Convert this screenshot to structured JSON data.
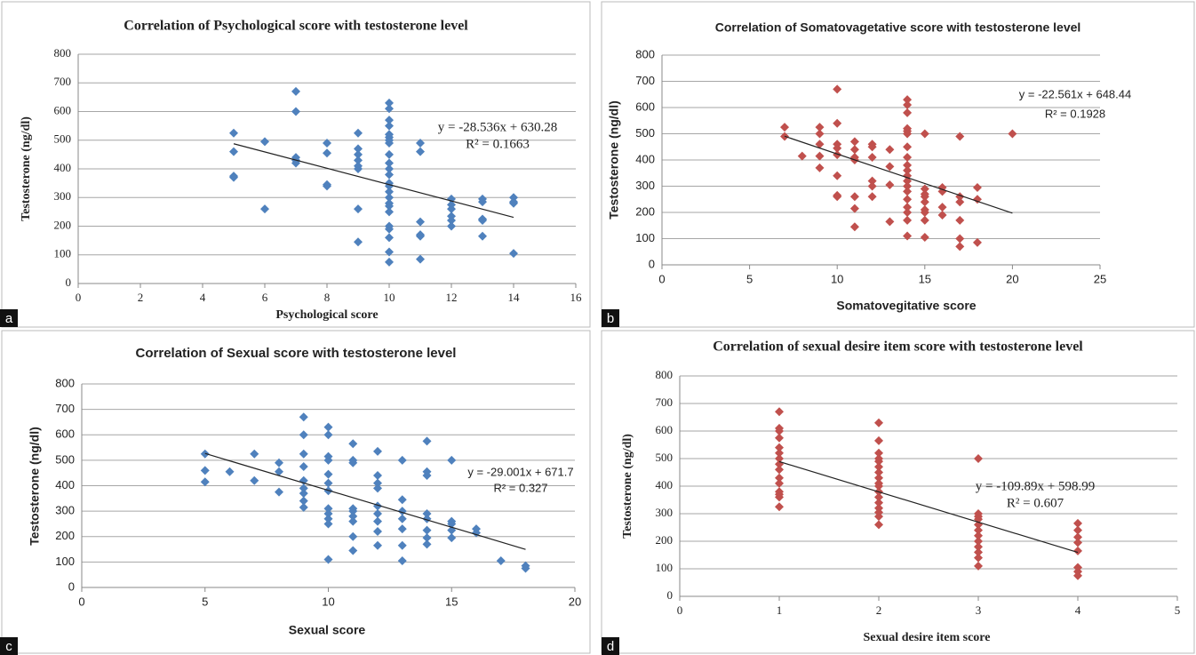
{
  "chart_data": [
    {
      "type": "scatter",
      "panel_label": "a",
      "title": "Correlation of Psychological score with testosterone level",
      "xlabel": "Psychological score",
      "ylabel": "Testosterone (ng/dl)",
      "xlim": [
        0,
        16
      ],
      "ylim": [
        0,
        800
      ],
      "xticks": [
        0,
        2,
        4,
        6,
        8,
        10,
        12,
        14,
        16
      ],
      "yticks": [
        0,
        100,
        200,
        300,
        400,
        500,
        600,
        700,
        800
      ],
      "grid": true,
      "color": "#4f81bd",
      "x": [
        5,
        5,
        5,
        5,
        6,
        6,
        7,
        7,
        7,
        7,
        7,
        8,
        8,
        8,
        8,
        9,
        9,
        9,
        9,
        9,
        9,
        9,
        9,
        10,
        10,
        10,
        10,
        10,
        10,
        10,
        10,
        10,
        10,
        10,
        10,
        10,
        10,
        10,
        10,
        10,
        10,
        10,
        10,
        10,
        10,
        10,
        10,
        11,
        11,
        11,
        11,
        11,
        11,
        12,
        12,
        12,
        12,
        12,
        12,
        13,
        13,
        13,
        13,
        13,
        14,
        14,
        14,
        14
      ],
      "y": [
        525,
        460,
        375,
        370,
        495,
        260,
        670,
        600,
        440,
        430,
        420,
        490,
        455,
        345,
        340,
        525,
        470,
        450,
        430,
        410,
        400,
        260,
        145,
        630,
        610,
        570,
        550,
        520,
        510,
        500,
        490,
        450,
        420,
        400,
        380,
        350,
        340,
        320,
        300,
        280,
        270,
        250,
        200,
        190,
        160,
        110,
        75,
        490,
        460,
        215,
        170,
        165,
        85,
        295,
        275,
        260,
        235,
        220,
        200,
        295,
        285,
        225,
        220,
        165,
        300,
        285,
        105,
        280
      ],
      "trendline": {
        "x": [
          5,
          14
        ],
        "y": [
          487.6,
          230.8
        ]
      },
      "annotations": [
        "y = -28.536x + 630.28",
        "R² = 0.1663"
      ]
    },
    {
      "type": "scatter",
      "panel_label": "b",
      "title": "Correlation of Somatovagetative score with testosterone level",
      "xlabel": "Somatovegitative score",
      "ylabel": "Testosterone (ng/dl)",
      "xlim": [
        0,
        25
      ],
      "ylim": [
        0,
        800
      ],
      "xticks": [
        0,
        5,
        10,
        15,
        20,
        25
      ],
      "yticks": [
        0,
        100,
        200,
        300,
        400,
        500,
        600,
        700,
        800
      ],
      "grid": true,
      "color": "#c0504d",
      "x": [
        7,
        7,
        8,
        9,
        9,
        9,
        9,
        9,
        10,
        10,
        10,
        10,
        10,
        10,
        10,
        10,
        11,
        11,
        11,
        11,
        11,
        11,
        11,
        12,
        12,
        12,
        12,
        12,
        12,
        13,
        13,
        13,
        13,
        14,
        14,
        14,
        14,
        14,
        14,
        14,
        14,
        14,
        14,
        14,
        14,
        14,
        14,
        14,
        14,
        14,
        14,
        14,
        15,
        15,
        15,
        15,
        15,
        15,
        15,
        15,
        15,
        16,
        16,
        16,
        16,
        17,
        17,
        17,
        17,
        17,
        17,
        18,
        18,
        18,
        20
      ],
      "y": [
        525,
        490,
        415,
        525,
        500,
        460,
        415,
        370,
        670,
        540,
        460,
        445,
        420,
        340,
        265,
        260,
        470,
        440,
        410,
        400,
        260,
        215,
        145,
        460,
        450,
        410,
        320,
        300,
        260,
        440,
        375,
        305,
        165,
        630,
        610,
        580,
        520,
        510,
        500,
        450,
        410,
        380,
        360,
        340,
        320,
        300,
        280,
        250,
        220,
        200,
        170,
        110,
        500,
        290,
        270,
        260,
        240,
        210,
        200,
        170,
        105,
        295,
        280,
        220,
        190,
        490,
        260,
        240,
        170,
        100,
        70,
        295,
        250,
        85,
        500
      ],
      "trendline": {
        "x": [
          7,
          20
        ],
        "y": [
          490.5,
          197.2
        ]
      },
      "annotations": [
        "y = -22.561x + 648.44",
        "R² = 0.1928"
      ]
    },
    {
      "type": "scatter",
      "panel_label": "c",
      "title": "Correlation of Sexual score with testosterone level",
      "xlabel": "Sexual score",
      "ylabel": "Testosterone (ng/dl)",
      "xlim": [
        0,
        20
      ],
      "ylim": [
        0,
        800
      ],
      "xticks": [
        0,
        5,
        10,
        15,
        20
      ],
      "yticks": [
        0,
        100,
        200,
        300,
        400,
        500,
        600,
        700,
        800
      ],
      "grid": true,
      "color": "#4f81bd",
      "x": [
        5,
        5,
        5,
        6,
        7,
        7,
        8,
        8,
        8,
        9,
        9,
        9,
        9,
        9,
        9,
        9,
        9,
        9,
        10,
        10,
        10,
        10,
        10,
        10,
        10,
        10,
        10,
        10,
        10,
        10,
        11,
        11,
        11,
        11,
        11,
        11,
        11,
        11,
        11,
        12,
        12,
        12,
        12,
        12,
        12,
        12,
        12,
        12,
        13,
        13,
        13,
        13,
        13,
        13,
        13,
        14,
        14,
        14,
        14,
        14,
        14,
        14,
        14,
        15,
        15,
        15,
        15,
        15,
        16,
        16,
        17,
        18,
        18
      ],
      "y": [
        525,
        460,
        415,
        455,
        525,
        420,
        490,
        455,
        375,
        670,
        600,
        525,
        475,
        420,
        390,
        370,
        340,
        315,
        630,
        600,
        515,
        500,
        445,
        410,
        380,
        310,
        290,
        270,
        250,
        110,
        565,
        500,
        490,
        310,
        300,
        280,
        260,
        200,
        145,
        535,
        440,
        410,
        390,
        320,
        290,
        260,
        220,
        165,
        500,
        345,
        300,
        270,
        230,
        165,
        105,
        575,
        455,
        440,
        290,
        270,
        225,
        195,
        170,
        500,
        260,
        250,
        225,
        195,
        230,
        215,
        105,
        85,
        75
      ],
      "trendline": {
        "x": [
          5,
          18
        ],
        "y": [
          526.7,
          149.7
        ]
      },
      "annotations": [
        "y = -29.001x + 671.7",
        "R² = 0.327"
      ]
    },
    {
      "type": "scatter",
      "panel_label": "d",
      "title": "Correlation of sexual desire item score with testosterone level",
      "xlabel": "Sexual desire item score",
      "ylabel": "Testosterone (ng/dl)",
      "xlim": [
        0,
        5
      ],
      "ylim": [
        0,
        800
      ],
      "xticks": [
        0,
        1,
        2,
        3,
        4,
        5
      ],
      "yticks": [
        0,
        100,
        200,
        300,
        400,
        500,
        600,
        700,
        800
      ],
      "grid": true,
      "color": "#c0504d",
      "x": [
        1,
        1,
        1,
        1,
        1,
        1,
        1,
        1,
        1,
        1,
        1,
        1,
        1,
        1,
        1,
        2,
        2,
        2,
        2,
        2,
        2,
        2,
        2,
        2,
        2,
        2,
        2,
        2,
        2,
        2,
        2,
        2,
        3,
        3,
        3,
        3,
        3,
        3,
        3,
        3,
        3,
        3,
        3,
        3,
        4,
        4,
        4,
        4,
        4,
        4,
        4,
        4
      ],
      "y": [
        670,
        610,
        600,
        575,
        540,
        520,
        500,
        480,
        460,
        430,
        410,
        380,
        370,
        360,
        325,
        630,
        565,
        520,
        500,
        490,
        470,
        450,
        430,
        410,
        400,
        380,
        360,
        340,
        320,
        305,
        290,
        260,
        500,
        300,
        290,
        280,
        260,
        240,
        220,
        200,
        180,
        160,
        140,
        110,
        265,
        240,
        215,
        195,
        165,
        105,
        90,
        75
      ],
      "trendline": {
        "x": [
          1,
          4
        ],
        "y": [
          489.1,
          159.4
        ]
      },
      "annotations": [
        "y = -109.89x + 598.99",
        "R² = 0.607"
      ]
    }
  ]
}
